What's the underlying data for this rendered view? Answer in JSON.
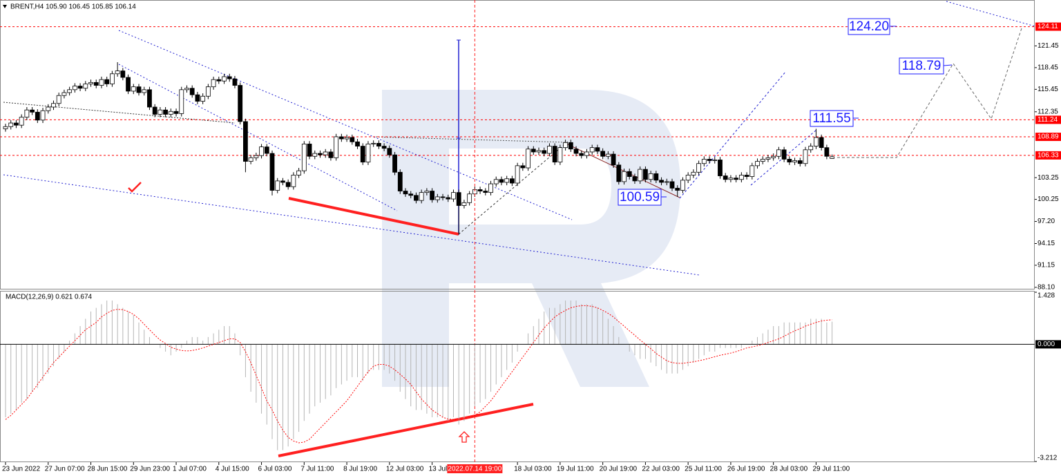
{
  "chart_data": [
    {
      "type": "candlestick",
      "title": "BRENT,H4 105.90 106.45 105.85 106.14",
      "open": [
        110.0,
        110.3,
        110.8,
        110.5,
        111.6,
        112.6,
        112.3,
        111.2,
        112.5,
        113.0,
        113.5,
        114.6,
        115.0,
        115.4,
        115.9,
        115.6,
        116.2,
        116.4,
        116.0,
        116.8,
        116.2,
        117.6,
        118.0,
        117.1,
        115.2,
        115.8,
        115.0,
        115.4,
        113.0,
        112.0,
        112.6,
        112.0,
        112.4,
        112.1,
        115.4,
        115.6,
        114.7,
        113.8,
        114.5,
        115.8,
        116.8,
        116.6,
        117.2,
        116.9,
        116.0,
        111.0,
        105.5,
        106.0,
        106.3,
        107.5,
        106.6,
        101.5,
        102.8,
        102.6,
        102.0,
        103.6,
        104.2,
        107.9,
        106.2,
        106.6,
        106.4,
        106.8,
        106.0,
        108.9,
        108.6,
        108.8,
        108.2,
        107.6,
        105.4,
        107.9,
        108.0,
        107.6,
        107.3,
        106.4,
        104.0,
        101.4,
        101.0,
        100.8,
        100.1,
        101.2,
        101.4,
        100.2,
        100.6,
        100.5,
        100.3,
        101.2,
        99.4,
        99.8,
        101.0,
        101.6,
        101.4,
        101.2,
        102.4,
        103.0,
        102.6,
        103.1,
        102.5,
        104.9,
        104.6,
        107.2,
        106.8,
        107.0,
        106.6,
        107.6,
        105.4,
        107.4,
        108.1,
        107.2,
        106.6,
        106.3,
        106.8,
        107.4,
        106.9,
        106.2,
        106.5,
        105.0,
        102.7,
        104.1,
        103.4,
        102.8,
        104.4,
        103.0,
        103.8,
        102.9,
        102.6,
        102.7,
        101.8,
        101.5,
        102.9,
        103.6,
        104.0,
        105.2,
        105.8,
        105.6,
        105.7,
        103.5,
        103.0,
        103.2,
        103.0,
        103.6,
        103.4,
        104.9,
        105.5,
        105.8,
        106.0,
        106.2,
        107.1,
        105.8,
        105.4,
        105.6,
        105.2,
        107.1,
        107.6,
        108.8,
        107.4,
        105.9
      ],
      "high": [
        110.7,
        111.2,
        111.2,
        112.0,
        113.0,
        113.0,
        112.7,
        112.9,
        113.4,
        113.9,
        115.0,
        115.4,
        115.8,
        116.3,
        116.3,
        116.6,
        116.8,
        116.8,
        117.2,
        117.2,
        118.0,
        119.2,
        118.4,
        117.5,
        116.2,
        116.2,
        115.8,
        115.8,
        113.4,
        113.0,
        113.0,
        112.8,
        112.8,
        115.8,
        116.0,
        116.0,
        115.1,
        114.9,
        116.2,
        117.2,
        117.2,
        117.6,
        117.6,
        117.3,
        116.4,
        111.4,
        106.4,
        106.7,
        107.9,
        107.9,
        107.0,
        103.2,
        103.2,
        103.0,
        104.0,
        104.6,
        108.3,
        108.3,
        107.0,
        107.0,
        107.2,
        107.2,
        109.3,
        109.3,
        109.2,
        109.2,
        108.6,
        108.0,
        108.3,
        108.4,
        108.4,
        108.0,
        107.7,
        106.8,
        104.4,
        101.8,
        101.4,
        101.2,
        101.6,
        101.8,
        101.8,
        101.0,
        101.0,
        100.9,
        101.6,
        101.6,
        100.2,
        101.4,
        102.0,
        102.0,
        101.8,
        102.8,
        103.4,
        103.4,
        103.5,
        103.5,
        105.3,
        105.3,
        107.6,
        107.6,
        107.4,
        107.4,
        108.0,
        108.0,
        107.8,
        108.5,
        108.5,
        107.6,
        107.0,
        107.2,
        107.8,
        107.8,
        107.3,
        106.9,
        106.9,
        105.4,
        104.5,
        104.5,
        103.8,
        104.8,
        104.8,
        104.2,
        104.2,
        103.3,
        103.1,
        103.1,
        102.2,
        103.3,
        104.0,
        104.4,
        105.6,
        106.2,
        106.2,
        106.1,
        106.1,
        103.9,
        103.6,
        103.6,
        104.0,
        104.0,
        105.3,
        105.9,
        106.2,
        106.4,
        106.6,
        107.5,
        107.5,
        106.2,
        106.0,
        106.0,
        107.5,
        108.0,
        110.0,
        109.2,
        107.8,
        106.45
      ],
      "low": [
        109.6,
        109.9,
        110.1,
        110.1,
        111.2,
        111.9,
        110.8,
        110.8,
        112.1,
        112.6,
        113.1,
        114.2,
        114.6,
        115.0,
        115.2,
        115.2,
        115.8,
        115.6,
        115.6,
        115.8,
        115.8,
        117.2,
        116.7,
        114.8,
        114.8,
        114.6,
        114.6,
        112.6,
        111.6,
        111.6,
        111.6,
        111.6,
        111.7,
        111.7,
        115.0,
        114.3,
        113.4,
        113.4,
        114.1,
        115.4,
        116.2,
        116.2,
        116.5,
        115.6,
        110.6,
        104.0,
        105.1,
        105.6,
        105.9,
        106.2,
        100.8,
        101.1,
        102.2,
        101.6,
        101.6,
        103.2,
        103.8,
        105.8,
        105.8,
        106.0,
        106.0,
        105.6,
        105.6,
        108.2,
        108.2,
        107.8,
        107.2,
        105.0,
        105.0,
        107.5,
        107.2,
        106.9,
        106.0,
        103.6,
        101.0,
        100.6,
        100.4,
        99.7,
        99.7,
        100.8,
        99.8,
        99.8,
        100.1,
        99.9,
        99.9,
        95.4,
        99.0,
        99.4,
        100.6,
        101.0,
        100.8,
        100.8,
        102.0,
        102.2,
        102.2,
        102.1,
        102.1,
        104.2,
        104.2,
        106.4,
        106.4,
        106.2,
        106.2,
        105.0,
        105.0,
        107.0,
        106.8,
        106.2,
        105.9,
        105.9,
        106.4,
        106.5,
        105.8,
        105.8,
        104.6,
        102.3,
        102.3,
        103.0,
        102.4,
        102.4,
        102.6,
        102.6,
        102.5,
        102.2,
        102.2,
        101.4,
        100.6,
        101.1,
        102.5,
        103.2,
        103.6,
        104.8,
        105.2,
        105.2,
        103.1,
        102.6,
        102.6,
        102.6,
        102.6,
        103.0,
        103.0,
        104.5,
        105.1,
        105.4,
        105.6,
        105.8,
        105.4,
        105.0,
        105.0,
        104.8,
        104.8,
        106.7,
        107.2,
        107.0,
        105.8,
        105.85
      ],
      "close": [
        110.3,
        110.8,
        110.5,
        111.6,
        112.6,
        112.3,
        111.2,
        112.5,
        113.0,
        113.5,
        114.6,
        115.0,
        115.4,
        115.9,
        115.6,
        116.2,
        116.4,
        116.0,
        116.8,
        116.2,
        117.6,
        118.0,
        117.1,
        115.2,
        115.8,
        115.0,
        115.4,
        113.0,
        112.0,
        112.6,
        112.0,
        112.4,
        112.1,
        115.4,
        115.6,
        114.7,
        113.8,
        114.5,
        115.8,
        116.8,
        116.6,
        117.2,
        116.9,
        116.0,
        111.0,
        105.5,
        106.0,
        106.3,
        107.5,
        106.6,
        101.5,
        102.8,
        102.6,
        102.0,
        103.6,
        104.2,
        107.9,
        106.2,
        106.6,
        106.4,
        106.8,
        106.0,
        108.9,
        108.6,
        108.8,
        108.2,
        107.6,
        105.4,
        107.9,
        108.0,
        107.6,
        107.3,
        106.4,
        104.0,
        101.4,
        101.0,
        100.8,
        100.1,
        101.2,
        101.4,
        100.2,
        100.6,
        100.5,
        100.3,
        101.2,
        99.4,
        99.8,
        101.0,
        101.6,
        101.4,
        101.2,
        102.4,
        103.0,
        102.6,
        103.1,
        102.5,
        104.9,
        104.6,
        107.2,
        106.8,
        107.0,
        106.6,
        107.6,
        105.4,
        107.4,
        108.1,
        107.2,
        106.6,
        106.3,
        106.8,
        107.4,
        106.9,
        106.2,
        106.5,
        105.0,
        102.7,
        104.1,
        103.4,
        102.8,
        104.4,
        103.0,
        103.8,
        102.9,
        102.6,
        102.7,
        101.8,
        101.5,
        102.9,
        103.6,
        104.0,
        105.2,
        105.8,
        105.6,
        105.7,
        103.5,
        103.0,
        103.2,
        103.0,
        103.6,
        103.4,
        104.9,
        105.5,
        105.8,
        106.0,
        106.2,
        107.1,
        105.8,
        105.4,
        105.6,
        105.2,
        107.1,
        107.6,
        108.8,
        107.4,
        106.2,
        106.14
      ],
      "up_color": "#ffffff",
      "down_color": "#000000",
      "ylim": [
        87.9,
        127.6
      ],
      "yticks": [
        {
          "value": 88.1,
          "label": "88.10"
        },
        91.15,
        94.15,
        {
          "value": 97.2,
          "label": "97.20"
        },
        100.25,
        103.25,
        112.35,
        115.45,
        118.45,
        121.45
      ],
      "levels": [
        124.11,
        111.24,
        108.89,
        106.33
      ],
      "level_color": "#ff0000",
      "price_labels": [
        "124.20",
        "118.79",
        "111.55",
        "100.59"
      ],
      "xticks": [
        {
          "value": 0,
          "label": "23 Jun 2022"
        },
        {
          "value": 8,
          "label": "27 Jun 07:00"
        },
        {
          "value": 16,
          "label": "28 Jun 15:00"
        },
        {
          "value": 24,
          "label": "29 Jun 23:00"
        },
        {
          "value": 32,
          "label": "1 Jul 07:00"
        },
        {
          "value": 40,
          "label": "4 Jul 15:00"
        },
        {
          "value": 48,
          "label": "6 Jul 03:00"
        },
        {
          "value": 56,
          "label": "7 Jul 11:00"
        },
        {
          "value": 64,
          "label": "8 Jul 19:00"
        },
        {
          "value": 72,
          "label": "12 Jul 03:00"
        },
        {
          "value": 80,
          "label": "13 Jul"
        },
        {
          "value": 96,
          "label": "18 Jul 03:00"
        },
        {
          "value": 104,
          "label": "19 Jul 11:00"
        },
        {
          "value": 112,
          "label": "20 Jul 19:00"
        },
        {
          "value": 120,
          "label": "22 Jul 03:00"
        },
        {
          "value": 128,
          "label": "25 Jul 11:00"
        },
        {
          "value": 136,
          "label": "26 Jul 19:00"
        },
        {
          "value": 144,
          "label": "28 Jul 03:00"
        },
        {
          "value": 152,
          "label": "29 Jul 11:00"
        }
      ],
      "cursor": {
        "value": 88,
        "label": "2022.07.14 19:00"
      }
    },
    {
      "type": "macd",
      "title": "MACD(12,26,9) 0.621 0.674",
      "histogram": [
        -2.0,
        -1.9,
        -1.8,
        -1.6,
        -1.5,
        -1.3,
        -1.2,
        -1.0,
        -0.8,
        -0.6,
        -0.4,
        -0.2,
        0.1,
        0.3,
        0.5,
        0.7,
        0.9,
        1.0,
        1.1,
        1.2,
        1.2,
        1.1,
        1.0,
        0.9,
        0.8,
        0.6,
        0.4,
        0.2,
        0.0,
        -0.1,
        -0.2,
        -0.3,
        -0.2,
        -0.1,
        0.1,
        0.2,
        0.2,
        0.1,
        0.2,
        0.3,
        0.4,
        0.5,
        0.5,
        0.3,
        -0.3,
        -0.9,
        -1.3,
        -1.6,
        -1.9,
        -2.2,
        -2.6,
        -2.9,
        -2.9,
        -2.8,
        -2.6,
        -2.4,
        -2.1,
        -1.9,
        -1.7,
        -1.6,
        -1.5,
        -1.4,
        -1.2,
        -1.1,
        -1.0,
        -0.9,
        -0.9,
        -1.0,
        -0.8,
        -0.7,
        -0.7,
        -0.7,
        -0.8,
        -1.0,
        -1.3,
        -1.5,
        -1.7,
        -1.8,
        -1.8,
        -1.9,
        -2.0,
        -2.0,
        -2.0,
        -2.1,
        -2.0,
        -2.2,
        -2.1,
        -1.9,
        -1.7,
        -1.6,
        -1.5,
        -1.3,
        -1.1,
        -0.9,
        -0.7,
        -0.5,
        -0.2,
        0.0,
        0.3,
        0.5,
        0.7,
        0.9,
        1.0,
        1.0,
        1.1,
        1.2,
        1.2,
        1.2,
        1.1,
        1.1,
        1.1,
        1.0,
        0.9,
        0.7,
        0.5,
        0.2,
        0.0,
        -0.2,
        -0.3,
        -0.4,
        -0.4,
        -0.5,
        -0.6,
        -0.7,
        -0.8,
        -0.8,
        -0.8,
        -0.7,
        -0.6,
        -0.5,
        -0.4,
        -0.3,
        -0.2,
        -0.2,
        -0.1,
        -0.1,
        -0.1,
        -0.1,
        -0.1,
        0.0,
        0.1,
        0.2,
        0.3,
        0.4,
        0.5,
        0.5,
        0.6,
        0.6,
        0.6,
        0.6,
        0.6,
        0.7,
        0.7,
        0.7,
        0.6,
        0.621
      ],
      "signal": [
        -2.06,
        -1.95,
        -1.8,
        -1.65,
        -1.5,
        -1.3,
        -1.1,
        -0.9,
        -0.7,
        -0.5,
        -0.35,
        -0.2,
        -0.05,
        0.1,
        0.25,
        0.4,
        0.5,
        0.6,
        0.75,
        0.85,
        0.93,
        0.96,
        0.95,
        0.9,
        0.82,
        0.7,
        0.55,
        0.4,
        0.25,
        0.12,
        0.02,
        -0.08,
        -0.13,
        -0.17,
        -0.18,
        -0.17,
        -0.14,
        -0.1,
        -0.05,
        0.0,
        0.05,
        0.1,
        0.15,
        0.15,
        0.05,
        -0.2,
        -0.5,
        -0.85,
        -1.2,
        -1.55,
        -1.8,
        -2.1,
        -2.35,
        -2.55,
        -2.65,
        -2.7,
        -2.68,
        -2.6,
        -2.45,
        -2.3,
        -2.15,
        -2.0,
        -1.85,
        -1.7,
        -1.55,
        -1.35,
        -1.15,
        -0.95,
        -0.75,
        -0.6,
        -0.55,
        -0.55,
        -0.6,
        -0.7,
        -0.82,
        -0.95,
        -1.1,
        -1.3,
        -1.5,
        -1.65,
        -1.8,
        -1.9,
        -2.0,
        -2.05,
        -2.06,
        -2.06,
        -2.04,
        -2.0,
        -1.95,
        -1.85,
        -1.7,
        -1.55,
        -1.35,
        -1.15,
        -0.95,
        -0.75,
        -0.55,
        -0.35,
        -0.15,
        0.05,
        0.25,
        0.45,
        0.6,
        0.75,
        0.85,
        0.93,
        1.0,
        1.04,
        1.06,
        1.06,
        1.04,
        1.0,
        0.93,
        0.85,
        0.75,
        0.62,
        0.5,
        0.37,
        0.25,
        0.12,
        0.0,
        -0.12,
        -0.25,
        -0.35,
        -0.45,
        -0.5,
        -0.52,
        -0.52,
        -0.5,
        -0.48,
        -0.45,
        -0.42,
        -0.38,
        -0.34,
        -0.3,
        -0.27,
        -0.24,
        -0.2,
        -0.15,
        -0.1,
        -0.07,
        -0.04,
        0.0,
        0.05,
        0.1,
        0.15,
        0.22,
        0.3,
        0.37,
        0.43,
        0.5,
        0.55,
        0.6,
        0.64,
        0.66,
        0.674
      ],
      "histogram_color": "#b4b4b4",
      "signal_color": "#ff0000",
      "ylim": [
        -3.212,
        1.428
      ],
      "yticks": [
        1.428,
        {
          "value": 0,
          "label": "0.000"
        },
        -3.212
      ]
    }
  ]
}
